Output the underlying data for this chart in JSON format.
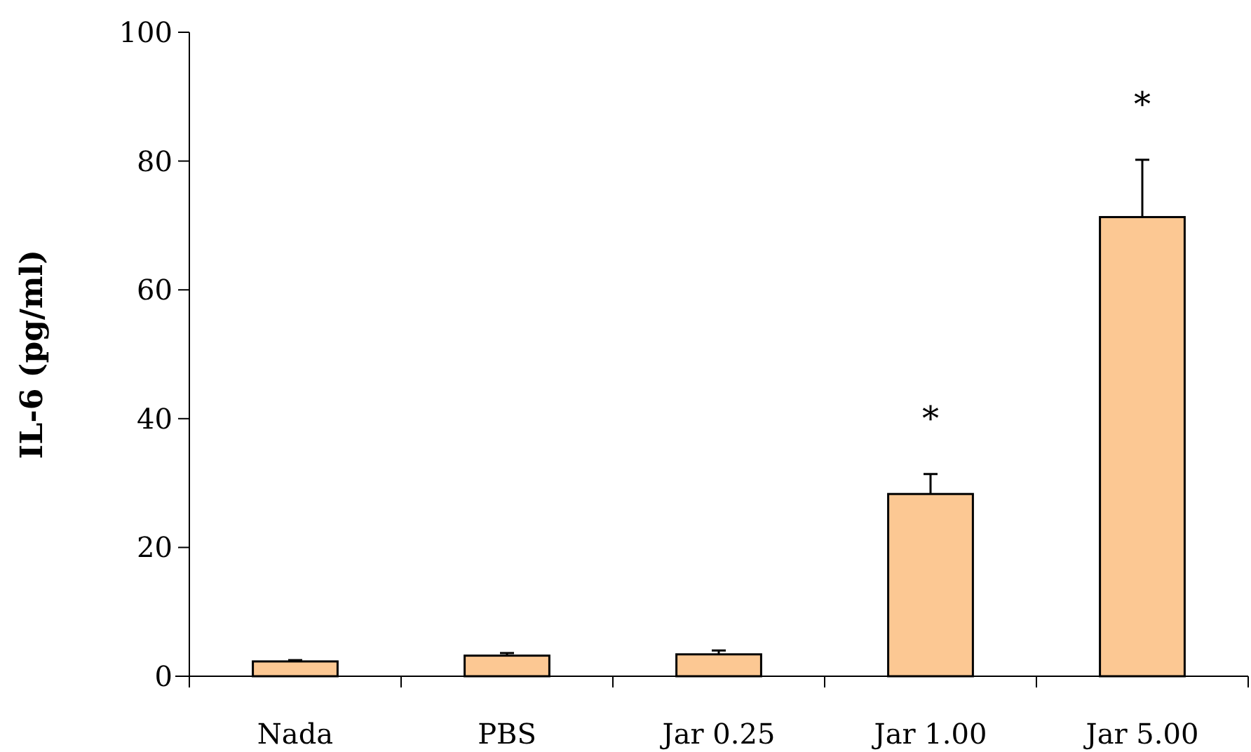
{
  "chart_data": {
    "type": "bar",
    "ylabel": "IL-6 (pg/ml)",
    "categories": [
      "Nada",
      "PBS",
      "Jar 0.25",
      "Jar 1.00",
      "Jar 5.00"
    ],
    "values": [
      2.3,
      3.2,
      3.4,
      28.3,
      71.3
    ],
    "errors": [
      0.2,
      0.4,
      0.6,
      3.1,
      8.9
    ],
    "color": "#fcc893",
    "ylim": [
      0,
      100
    ],
    "yticks": [
      0,
      20,
      40,
      60,
      80,
      100
    ],
    "grid": false,
    "annotations": [
      "*",
      "*"
    ]
  }
}
